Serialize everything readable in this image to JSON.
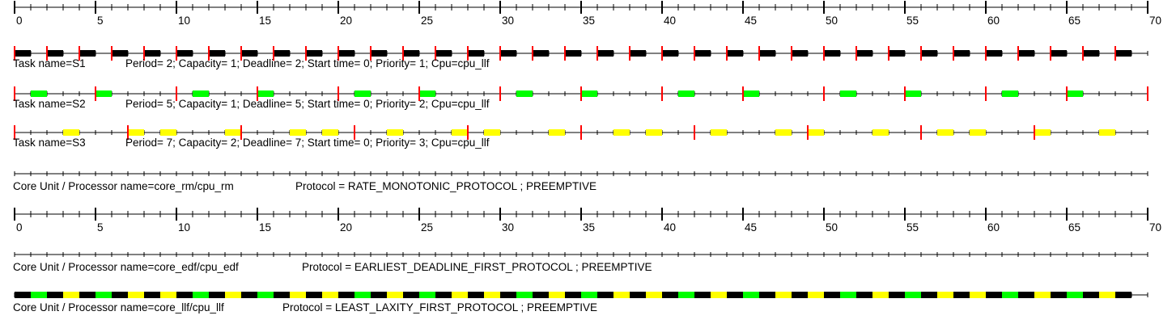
{
  "chart_data": {
    "type": "timeline",
    "x_range": [
      0,
      70
    ],
    "major_tick_step": 5,
    "minor_tick_step": 1,
    "scale_labels": [
      "0",
      "5",
      "10",
      "15",
      "20",
      "25",
      "30",
      "35",
      "40",
      "45",
      "50",
      "55",
      "60",
      "65",
      "70"
    ],
    "tasks": [
      {
        "name_text": "Task name=S1",
        "info_text": "Period= 2; Capacity= 1; Deadline= 2; Start time= 0; Priority= 1; Cpu=cpu_llf",
        "period": 2,
        "capacity": 1,
        "deadline": 2,
        "start_time": 0,
        "priority": 1,
        "color": "#000000",
        "release_marks_visible_until": 68,
        "exec_segments": [
          [
            0,
            1
          ],
          [
            2,
            3
          ],
          [
            4,
            5
          ],
          [
            6,
            7
          ],
          [
            8,
            9
          ],
          [
            10,
            11
          ],
          [
            12,
            13
          ],
          [
            14,
            15
          ],
          [
            16,
            17
          ],
          [
            18,
            19
          ],
          [
            20,
            21
          ],
          [
            22,
            23
          ],
          [
            24,
            25
          ],
          [
            26,
            27
          ],
          [
            28,
            29
          ],
          [
            30,
            31
          ],
          [
            32,
            33
          ],
          [
            34,
            35
          ],
          [
            36,
            37
          ],
          [
            38,
            39
          ],
          [
            40,
            41
          ],
          [
            42,
            43
          ],
          [
            44,
            45
          ],
          [
            46,
            47
          ],
          [
            48,
            49
          ],
          [
            50,
            51
          ],
          [
            52,
            53
          ],
          [
            54,
            55
          ],
          [
            56,
            57
          ],
          [
            58,
            59
          ],
          [
            60,
            61
          ],
          [
            62,
            63
          ],
          [
            64,
            65
          ],
          [
            66,
            67
          ],
          [
            68,
            69
          ]
        ]
      },
      {
        "name_text": "Task name=S2",
        "info_text": "Period= 5; Capacity= 1; Deadline= 5; Start time= 0; Priority= 2; Cpu=cpu_llf",
        "period": 5,
        "capacity": 1,
        "deadline": 5,
        "start_time": 0,
        "priority": 2,
        "color": "#00ff00",
        "release_marks_visible_until": 70,
        "exec_segments": [
          [
            1,
            2
          ],
          [
            5,
            6
          ],
          [
            11,
            12
          ],
          [
            15,
            16
          ],
          [
            21,
            22
          ],
          [
            25,
            26
          ],
          [
            31,
            32
          ],
          [
            35,
            36
          ],
          [
            41,
            42
          ],
          [
            45,
            46
          ],
          [
            51,
            52
          ],
          [
            55,
            56
          ],
          [
            61,
            62
          ],
          [
            65,
            66
          ]
        ]
      },
      {
        "name_text": "Task name=S3",
        "info_text": "Period= 7; Capacity= 2; Deadline= 7; Start time= 0; Priority= 3; Cpu=cpu_llf",
        "period": 7,
        "capacity": 2,
        "deadline": 7,
        "start_time": 0,
        "priority": 3,
        "color": "#ffff00",
        "release_marks_visible_until": 63,
        "exec_segments": [
          [
            3,
            4
          ],
          [
            7,
            8
          ],
          [
            9,
            10
          ],
          [
            13,
            14
          ],
          [
            17,
            18
          ],
          [
            19,
            20
          ],
          [
            23,
            24
          ],
          [
            27,
            28
          ],
          [
            29,
            30
          ],
          [
            33,
            34
          ],
          [
            37,
            38
          ],
          [
            39,
            40
          ],
          [
            43,
            44
          ],
          [
            47,
            48
          ],
          [
            49,
            50
          ],
          [
            53,
            54
          ],
          [
            57,
            58
          ],
          [
            59,
            60
          ],
          [
            63,
            64
          ],
          [
            67,
            68
          ]
        ]
      }
    ],
    "processors": [
      {
        "name_text": "Core Unit / Processor name=core_rm/cpu_rm",
        "protocol_text": "Protocol = RATE_MONOTONIC_PROTOCOL ; PREEMPTIVE",
        "segments": []
      },
      {
        "name_text": "Core Unit / Processor name=core_edf/cpu_edf",
        "protocol_text": "Protocol = EARLIEST_DEADLINE_FIRST_PROTOCOL ; PREEMPTIVE",
        "segments": []
      },
      {
        "name_text": "Core Unit / Processor name=core_llf/cpu_llf",
        "protocol_text": "Protocol = LEAST_LAXITY_FIRST_PROTOCOL ; PREEMPTIVE",
        "segments_from_tasks": true
      }
    ],
    "colors": {
      "release_mark": "#ff0000",
      "axis": "#000000",
      "background": "#ffffff"
    }
  }
}
